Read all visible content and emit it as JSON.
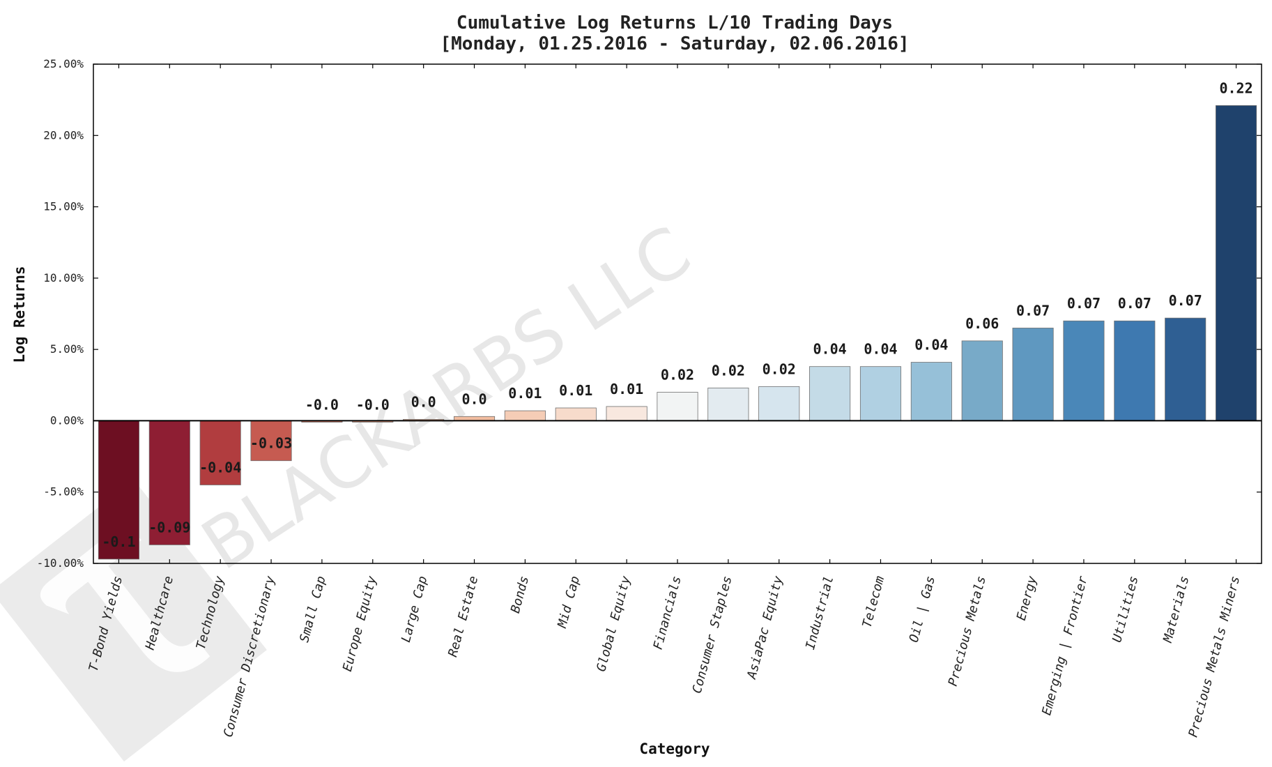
{
  "watermark": {
    "text": "BLACKARBS LLC",
    "icon": "tau-logo-icon"
  },
  "chart_data": {
    "type": "bar",
    "title": "Cumulative Log Returns L/10 Trading Days",
    "subtitle": "[Monday, 01.25.2016 - Saturday, 02.06.2016]",
    "xlabel": "Category",
    "ylabel": "Log Returns",
    "ylim": [
      -0.1,
      0.25
    ],
    "yticks": [
      -0.1,
      -0.05,
      0.0,
      0.05,
      0.1,
      0.15,
      0.2,
      0.25
    ],
    "ytick_labels": [
      "-10.00%",
      "-5.00%",
      "0.00%",
      "5.00%",
      "10.00%",
      "15.00%",
      "20.00%",
      "25.00%"
    ],
    "grid": false,
    "categories": [
      "T-Bond Yields",
      "Healthcare",
      "Technology",
      "Consumer Discretionary",
      "Small Cap",
      "Europe Equity",
      "Large Cap",
      "Real Estate",
      "Bonds",
      "Mid Cap",
      "Global Equity",
      "Financials",
      "Consumer Staples",
      "AsiaPac Equity",
      "Industrial",
      "Telecom",
      "Oil | Gas",
      "Precious Metals",
      "Energy",
      "Emerging | Frontier",
      "Utilities",
      "Materials",
      "Precious Metals Miners"
    ],
    "values": [
      -0.097,
      -0.087,
      -0.045,
      -0.028,
      -0.001,
      -0.001,
      0.001,
      0.003,
      0.007,
      0.009,
      0.01,
      0.02,
      0.023,
      0.024,
      0.038,
      0.038,
      0.041,
      0.056,
      0.065,
      0.07,
      0.07,
      0.072,
      0.221
    ],
    "data_labels": [
      "-0.1",
      "-0.09",
      "-0.04",
      "-0.03",
      "-0.0",
      "-0.0",
      "0.0",
      "0.0",
      "0.01",
      "0.01",
      "0.01",
      "0.02",
      "0.02",
      "0.02",
      "0.04",
      "0.04",
      "0.04",
      "0.06",
      "0.07",
      "0.07",
      "0.07",
      "0.07",
      "0.22"
    ],
    "colors": [
      "#6d0f22",
      "#8e1e33",
      "#b13d3f",
      "#c65b51",
      "#d97a62",
      "#e39678",
      "#eeae8e",
      "#f1bc9f",
      "#f5cdb6",
      "#f7dbcb",
      "#f8e8df",
      "#f2f4f4",
      "#e3ebf0",
      "#d6e5ee",
      "#c4dbe7",
      "#b0d0e2",
      "#96c0d8",
      "#78aac8",
      "#5f98c0",
      "#4a87b8",
      "#3e79b0",
      "#2f5f93",
      "#1f426c"
    ]
  }
}
